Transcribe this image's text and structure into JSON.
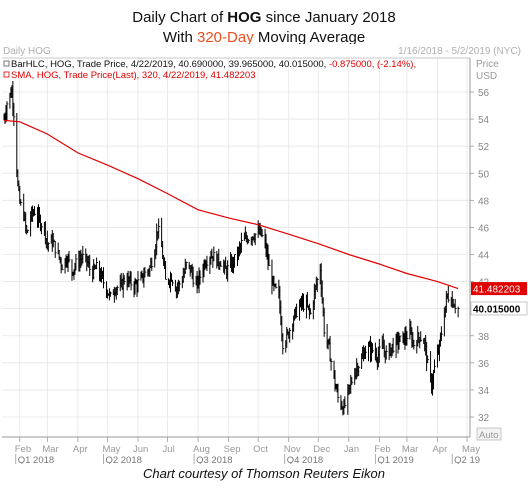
{
  "header": {
    "title_prefix": "Daily Chart of ",
    "title_ticker": "HOG",
    "title_suffix": " since January 2018",
    "subtitle_prefix": "With ",
    "subtitle_accent": "320-Day",
    "subtitle_suffix": " Moving Average"
  },
  "chart_header": {
    "left": "Daily HOG",
    "right": "1/16/2018 - 5/2/2019 (NYC)"
  },
  "legend": {
    "bar_line": "BarHLC, HOG, Trade Price, 4/22/2019, 40.690000, 39.965000, 40.015000, ",
    "bar_change": "-0.875000, (-2.14%),",
    "sma_line": "SMA, HOG, Trade Price(Last), 320, 4/22/2019, 41.482203"
  },
  "axis": {
    "price_label": "Price",
    "unit_label": "USD",
    "auto_label": "Auto"
  },
  "footer": {
    "courtesy": "Chart courtesy of Thomson Reuters Eikon"
  },
  "colors": {
    "price_bars": "#000000",
    "sma_line": "#e00000",
    "sma_label_bg": "#e00000",
    "legend_change": "#e00000",
    "accent": "#e8501e",
    "grid": "#e6e6e6"
  },
  "chart_data": {
    "type": "line",
    "ylim": [
      31,
      57
    ],
    "y_ticks": [
      32,
      34,
      36,
      38,
      40,
      42,
      44,
      46,
      48,
      50,
      52,
      54,
      56
    ],
    "x_range": [
      "2018-01-16",
      "2019-05-02"
    ],
    "x_ticks": [
      {
        "date": "2018-02-01",
        "label": "Feb"
      },
      {
        "date": "2018-03-01",
        "label": "Mar"
      },
      {
        "date": "2018-04-01",
        "label": "Apr"
      },
      {
        "date": "2018-05-01",
        "label": "May"
      },
      {
        "date": "2018-06-01",
        "label": "Jun"
      },
      {
        "date": "2018-07-01",
        "label": "Jul"
      },
      {
        "date": "2018-08-01",
        "label": "Aug"
      },
      {
        "date": "2018-09-01",
        "label": "Sep"
      },
      {
        "date": "2018-10-01",
        "label": "Oct"
      },
      {
        "date": "2018-11-01",
        "label": "Nov"
      },
      {
        "date": "2018-12-01",
        "label": "Dec"
      },
      {
        "date": "2019-01-01",
        "label": "Jan"
      },
      {
        "date": "2019-02-01",
        "label": "Feb"
      },
      {
        "date": "2019-03-01",
        "label": "Mar"
      },
      {
        "date": "2019-04-01",
        "label": "Apr"
      },
      {
        "date": "2019-05-01",
        "label": "May"
      }
    ],
    "quarter_ticks": [
      {
        "date": "2018-02-01",
        "label": "Q1 2018"
      },
      {
        "date": "2018-05-01",
        "label": "Q2 2018"
      },
      {
        "date": "2018-08-01",
        "label": "Q3 2018"
      },
      {
        "date": "2018-11-01",
        "label": "Q4 2018"
      },
      {
        "date": "2019-02-01",
        "label": "Q1 2019"
      },
      {
        "date": "2019-04-20",
        "label": "Q2 19"
      }
    ],
    "series": [
      {
        "name": "HOG",
        "style": "hlc_bars",
        "points": [
          [
            "2018-01-16",
            54.0
          ],
          [
            "2018-01-19",
            55.2
          ],
          [
            "2018-01-24",
            56.1
          ],
          [
            "2018-01-26",
            54.5
          ],
          [
            "2018-01-30",
            49.0
          ],
          [
            "2018-02-01",
            47.8
          ],
          [
            "2018-02-05",
            47.0
          ],
          [
            "2018-02-08",
            45.5
          ],
          [
            "2018-02-12",
            46.8
          ],
          [
            "2018-02-16",
            47.2
          ],
          [
            "2018-02-21",
            46.5
          ],
          [
            "2018-02-26",
            46.0
          ],
          [
            "2018-03-01",
            44.8
          ],
          [
            "2018-03-06",
            45.0
          ],
          [
            "2018-03-12",
            44.0
          ],
          [
            "2018-03-16",
            43.2
          ],
          [
            "2018-03-21",
            43.8
          ],
          [
            "2018-03-26",
            42.8
          ],
          [
            "2018-03-30",
            43.3
          ],
          [
            "2018-04-05",
            43.8
          ],
          [
            "2018-04-10",
            43.5
          ],
          [
            "2018-04-15",
            42.6
          ],
          [
            "2018-04-20",
            43.0
          ],
          [
            "2018-04-25",
            42.3
          ],
          [
            "2018-04-30",
            41.5
          ],
          [
            "2018-05-04",
            40.8
          ],
          [
            "2018-05-09",
            41.6
          ],
          [
            "2018-05-14",
            41.5
          ],
          [
            "2018-05-18",
            42.2
          ],
          [
            "2018-05-23",
            42.0
          ],
          [
            "2018-05-29",
            41.7
          ],
          [
            "2018-06-04",
            42.1
          ],
          [
            "2018-06-08",
            42.6
          ],
          [
            "2018-06-13",
            43.0
          ],
          [
            "2018-06-18",
            44.4
          ],
          [
            "2018-06-21",
            46.0
          ],
          [
            "2018-06-25",
            44.5
          ],
          [
            "2018-06-29",
            42.0
          ],
          [
            "2018-07-05",
            42.4
          ],
          [
            "2018-07-10",
            41.5
          ],
          [
            "2018-07-16",
            42.2
          ],
          [
            "2018-07-20",
            43.2
          ],
          [
            "2018-07-25",
            42.8
          ],
          [
            "2018-07-30",
            41.6
          ],
          [
            "2018-08-03",
            42.4
          ],
          [
            "2018-08-08",
            43.5
          ],
          [
            "2018-08-14",
            44.0
          ],
          [
            "2018-08-20",
            43.6
          ],
          [
            "2018-08-24",
            43.5
          ],
          [
            "2018-08-29",
            42.8
          ],
          [
            "2018-09-04",
            43.2
          ],
          [
            "2018-09-10",
            44.0
          ],
          [
            "2018-09-14",
            44.8
          ],
          [
            "2018-09-19",
            45.2
          ],
          [
            "2018-09-24",
            45.4
          ],
          [
            "2018-09-28",
            45.5
          ],
          [
            "2018-10-03",
            45.6
          ],
          [
            "2018-10-08",
            44.8
          ],
          [
            "2018-10-12",
            43.0
          ],
          [
            "2018-10-17",
            41.5
          ],
          [
            "2018-10-22",
            41.0
          ],
          [
            "2018-10-26",
            37.5
          ],
          [
            "2018-10-31",
            38.0
          ],
          [
            "2018-11-05",
            39.2
          ],
          [
            "2018-11-09",
            39.8
          ],
          [
            "2018-11-14",
            40.4
          ],
          [
            "2018-11-19",
            40.2
          ],
          [
            "2018-11-23",
            39.6
          ],
          [
            "2018-11-28",
            41.5
          ],
          [
            "2018-12-03",
            43.0
          ],
          [
            "2018-12-07",
            38.5
          ],
          [
            "2018-12-12",
            37.0
          ],
          [
            "2018-12-17",
            34.8
          ],
          [
            "2018-12-21",
            33.4
          ],
          [
            "2018-12-27",
            32.6
          ],
          [
            "2019-01-02",
            34.2
          ],
          [
            "2019-01-08",
            35.6
          ],
          [
            "2019-01-14",
            36.2
          ],
          [
            "2019-01-18",
            37.0
          ],
          [
            "2019-01-24",
            37.0
          ],
          [
            "2019-01-30",
            36.5
          ],
          [
            "2019-02-04",
            37.2
          ],
          [
            "2019-02-08",
            36.6
          ],
          [
            "2019-02-14",
            37.2
          ],
          [
            "2019-02-20",
            37.6
          ],
          [
            "2019-02-26",
            37.8
          ],
          [
            "2019-03-04",
            38.2
          ],
          [
            "2019-03-08",
            37.4
          ],
          [
            "2019-03-14",
            38.0
          ],
          [
            "2019-03-19",
            37.5
          ],
          [
            "2019-03-22",
            35.8
          ],
          [
            "2019-03-26",
            34.4
          ],
          [
            "2019-03-29",
            35.6
          ],
          [
            "2019-04-03",
            37.2
          ],
          [
            "2019-04-08",
            39.8
          ],
          [
            "2019-04-11",
            41.0
          ],
          [
            "2019-04-16",
            40.6
          ],
          [
            "2019-04-22",
            40.0
          ]
        ]
      },
      {
        "name": "SMA",
        "style": "line",
        "points": [
          [
            "2018-01-16",
            53.9
          ],
          [
            "2018-02-01",
            53.8
          ],
          [
            "2018-03-01",
            52.9
          ],
          [
            "2018-04-01",
            51.5
          ],
          [
            "2018-05-01",
            50.6
          ],
          [
            "2018-06-01",
            49.6
          ],
          [
            "2018-07-01",
            48.5
          ],
          [
            "2018-08-01",
            47.3
          ],
          [
            "2018-09-01",
            46.7
          ],
          [
            "2018-10-01",
            46.2
          ],
          [
            "2018-11-01",
            45.5
          ],
          [
            "2018-12-01",
            44.8
          ],
          [
            "2019-01-01",
            44.0
          ],
          [
            "2019-02-01",
            43.3
          ],
          [
            "2019-03-01",
            42.6
          ],
          [
            "2019-04-01",
            42.0
          ],
          [
            "2019-04-22",
            41.48
          ]
        ]
      }
    ],
    "last_labels": [
      {
        "series": "SMA",
        "value": "41.482203"
      },
      {
        "series": "HOG",
        "value": "40.015000"
      }
    ]
  }
}
